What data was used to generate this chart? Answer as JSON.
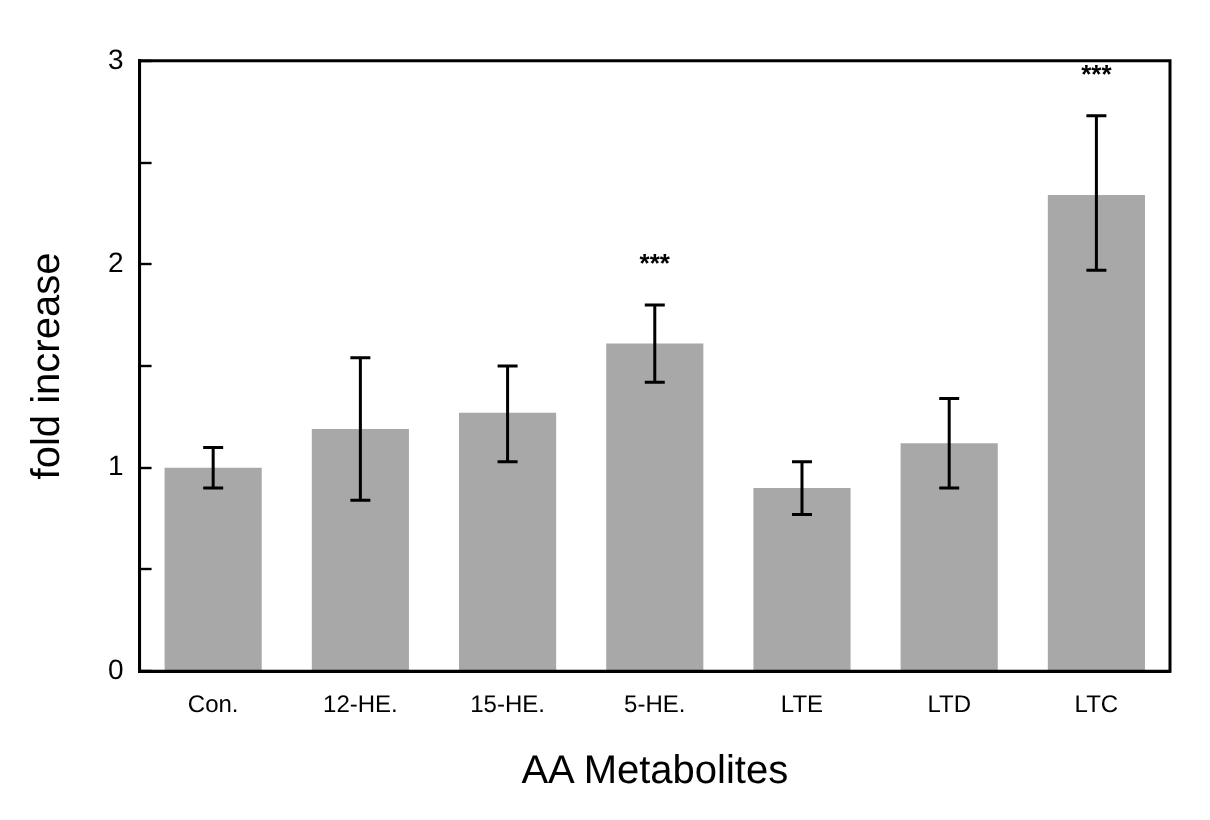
{
  "chart_data": {
    "type": "bar",
    "xlabel": "AA Metabolites",
    "ylabel": "fold increase",
    "categories": [
      "Con.",
      "12-HE.",
      "15-HE.",
      "5-HE.",
      "LTE",
      "LTD",
      "LTC"
    ],
    "values": [
      1.0,
      1.19,
      1.27,
      1.61,
      0.9,
      1.12,
      2.34
    ],
    "errors": [
      [
        0.9,
        1.1
      ],
      [
        0.84,
        1.54
      ],
      [
        1.03,
        1.5
      ],
      [
        1.42,
        1.8
      ],
      [
        0.77,
        1.03
      ],
      [
        0.9,
        1.34
      ],
      [
        1.97,
        2.73
      ]
    ],
    "color": "#a8a8a8",
    "ylim": [
      0,
      3
    ],
    "yticks": [
      0,
      {
        "value": 0.5,
        "label": null
      },
      1,
      {
        "value": 1.5,
        "label": null
      },
      2,
      {
        "value": 2.5,
        "label": null
      },
      3
    ],
    "annotations": [
      {
        "text": "***",
        "x": "5-HE.",
        "y": 1.8
      },
      {
        "text": "***",
        "x": "LTC",
        "y": 2.73
      }
    ],
    "grid": false,
    "legend": false
  }
}
